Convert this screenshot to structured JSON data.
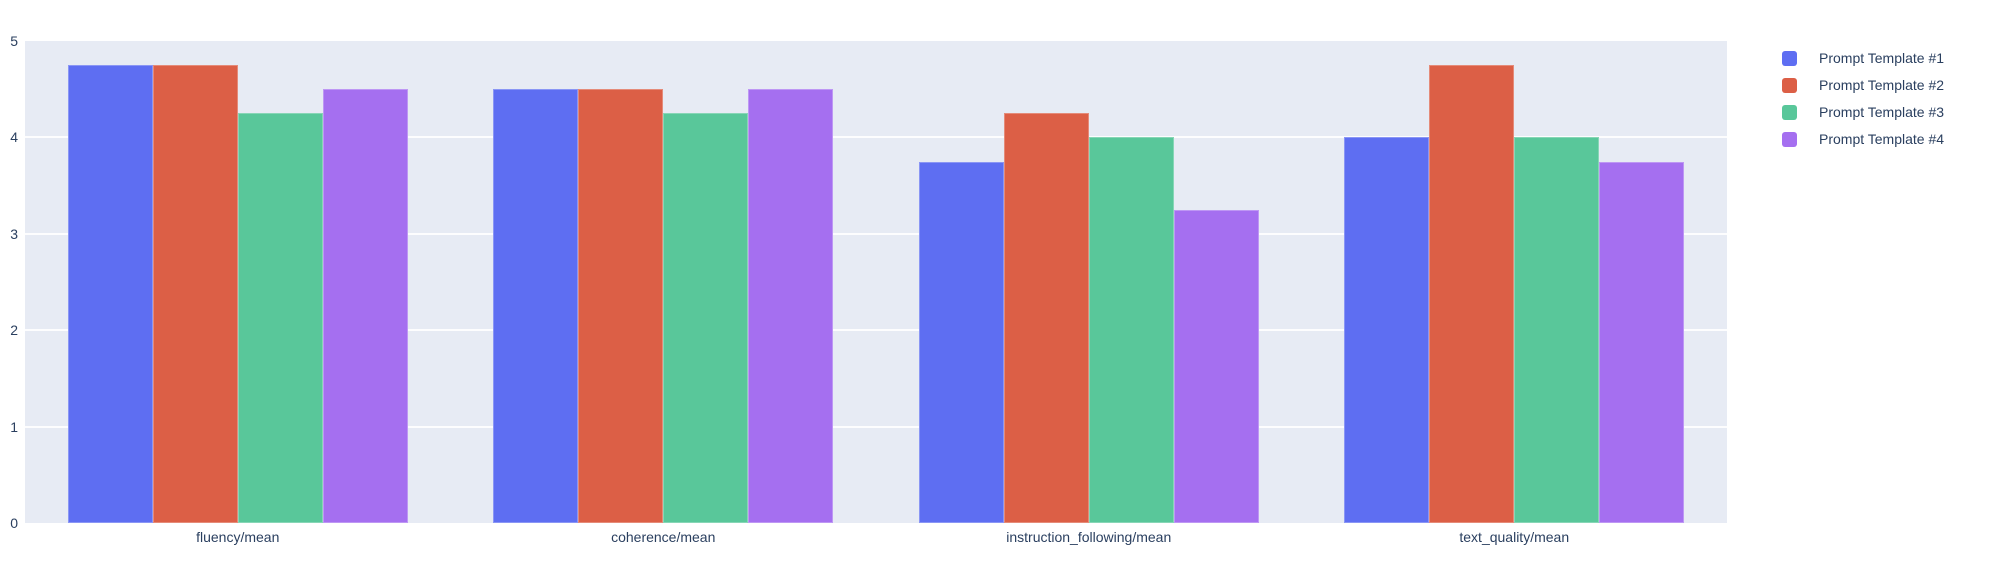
{
  "chart": {
    "plot_background": "#e7ebf4",
    "page_background": "#ffffff",
    "text_color": "#2a3f5f",
    "gridline_color": "#ffffff",
    "y_ticks": [
      "0",
      "1",
      "2",
      "3",
      "4",
      "5"
    ],
    "gridline_values": [
      1,
      2,
      3,
      4
    ]
  },
  "chart_data": {
    "type": "bar",
    "title": "",
    "xlabel": "",
    "ylabel": "",
    "ylim": [
      0,
      5
    ],
    "grid": true,
    "legend_position": "right-top",
    "categories": [
      "fluency/mean",
      "coherence/mean",
      "instruction_following/mean",
      "text_quality/mean"
    ],
    "series": [
      {
        "name": "Prompt Template #1",
        "color": "#5e6ef2",
        "values": [
          4.75,
          4.5,
          3.75,
          4.0
        ]
      },
      {
        "name": "Prompt Template #2",
        "color": "#dc5f46",
        "values": [
          4.75,
          4.5,
          4.25,
          4.75
        ]
      },
      {
        "name": "Prompt Template #3",
        "color": "#59c79a",
        "values": [
          4.25,
          4.25,
          4.0,
          4.0
        ]
      },
      {
        "name": "Prompt Template #4",
        "color": "#a56ff0",
        "values": [
          4.5,
          4.5,
          3.25,
          3.75
        ]
      }
    ]
  }
}
